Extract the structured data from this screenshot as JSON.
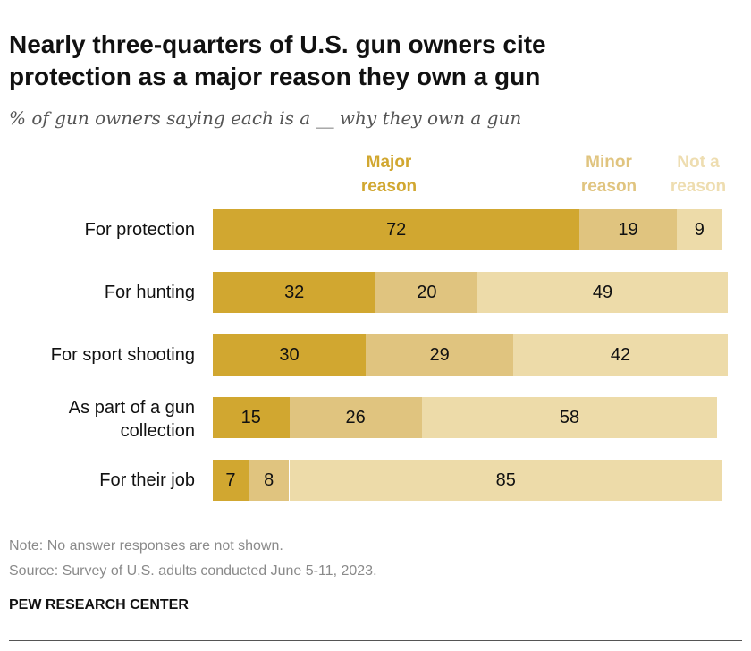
{
  "chart_data": {
    "type": "bar",
    "orientation": "horizontal",
    "stacked": true,
    "title": "Nearly three-quarters of U.S. gun owners cite protection as a major reason they own a gun",
    "subtitle": "% of gun owners saying each is a __ why they own a gun",
    "categories": [
      "For protection",
      "For hunting",
      "For sport shooting",
      "As part of a gun collection",
      "For their job"
    ],
    "series": [
      {
        "name": "Major reason",
        "color": "#D1A730",
        "values": [
          72,
          32,
          30,
          15,
          7
        ]
      },
      {
        "name": "Minor reason",
        "color": "#E0C47F",
        "values": [
          19,
          20,
          29,
          26,
          8
        ]
      },
      {
        "name": "Not a reason",
        "color": "#EDDBA9",
        "values": [
          9,
          49,
          42,
          58,
          85
        ]
      }
    ],
    "xlim": [
      0,
      100
    ],
    "legend": "top"
  },
  "legend_labels": [
    {
      "line1": "Major",
      "line2": "reason",
      "color": "#D1A730"
    },
    {
      "line1": "Minor",
      "line2": "reason",
      "color": "#E0C47F"
    },
    {
      "line1": "Not a",
      "line2": "reason",
      "color": "#EDDBA9"
    }
  ],
  "notes": {
    "note": "Note: No answer responses are not shown.",
    "source": "Source: Survey of U.S. adults conducted June 5-11, 2023.",
    "brand": "PEW RESEARCH CENTER"
  }
}
